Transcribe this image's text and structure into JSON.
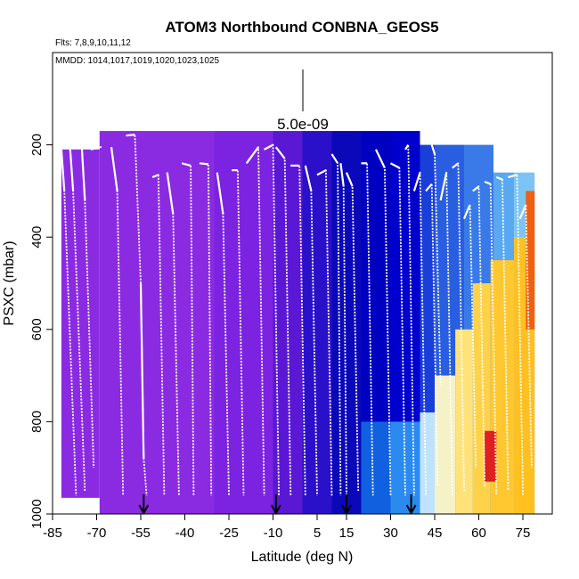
{
  "chart_data": {
    "type": "heatmap",
    "title": "ATOM3 Northbound CONBNA_GEOS5",
    "subtitle_flights": "Flts: 7,8,9,10,11,12",
    "subtitle_dates": "MMDD: 1014,1017,1019,1020,1023,1025",
    "scale_label": "5.0e-09",
    "xlabel": "Latitude (deg N)",
    "ylabel": "PSXC (mbar)",
    "xlim": [
      -85,
      85
    ],
    "ylim": [
      1000,
      0
    ],
    "x_ticks": [
      -85,
      -70,
      -55,
      -40,
      -25,
      -10,
      5,
      15,
      30,
      45,
      60,
      75
    ],
    "y_ticks": [
      200,
      400,
      600,
      800,
      1000
    ],
    "arrows_latitude": [
      -54,
      -9,
      15,
      37
    ],
    "color_regions": [
      {
        "x": [
          -82,
          -69
        ],
        "p": [
          210,
          965
        ],
        "color": "#8a2be2"
      },
      {
        "x": [
          -69,
          -30
        ],
        "p": [
          170,
          1000
        ],
        "color": "#8a2be2"
      },
      {
        "x": [
          -30,
          -10
        ],
        "p": [
          170,
          1000
        ],
        "color": "#7b23e0"
      },
      {
        "x": [
          -10,
          0
        ],
        "p": [
          170,
          1000
        ],
        "color": "#5a18d4"
      },
      {
        "x": [
          0,
          10
        ],
        "p": [
          170,
          1000
        ],
        "color": "#2a10c8"
      },
      {
        "x": [
          10,
          20
        ],
        "p": [
          170,
          1000
        ],
        "color": "#0a08b8"
      },
      {
        "x": [
          20,
          30
        ],
        "p": [
          170,
          1000
        ],
        "color": "#0000c0"
      },
      {
        "x": [
          30,
          40
        ],
        "p": [
          170,
          1000
        ],
        "color": "#0000cc"
      },
      {
        "x": [
          40,
          45
        ],
        "p": [
          200,
          1000
        ],
        "color": "#1a3fd8"
      },
      {
        "x": [
          45,
          55
        ],
        "p": [
          200,
          1000
        ],
        "color": "#2a5ee0"
      },
      {
        "x": [
          55,
          65
        ],
        "p": [
          200,
          1000
        ],
        "color": "#3a7ae8"
      },
      {
        "x": [
          65,
          72
        ],
        "p": [
          260,
          1000
        ],
        "color": "#5aa8f0"
      },
      {
        "x": [
          72,
          79
        ],
        "p": [
          260,
          1000
        ],
        "color": "#7cc4f4"
      },
      {
        "x": [
          20,
          30
        ],
        "p": [
          800,
          1000
        ],
        "color": "#1060e0"
      },
      {
        "x": [
          30,
          40
        ],
        "p": [
          800,
          1000
        ],
        "color": "#2a8af0"
      },
      {
        "x": [
          40,
          45
        ],
        "p": [
          780,
          1000
        ],
        "color": "#bfe3ff"
      },
      {
        "x": [
          45,
          52
        ],
        "p": [
          700,
          1000
        ],
        "color": "#f5f2c8"
      },
      {
        "x": [
          52,
          58
        ],
        "p": [
          600,
          1000
        ],
        "color": "#ffe27a"
      },
      {
        "x": [
          58,
          64
        ],
        "p": [
          500,
          1000
        ],
        "color": "#ffd24a"
      },
      {
        "x": [
          64,
          72
        ],
        "p": [
          450,
          1000
        ],
        "color": "#ffc830"
      },
      {
        "x": [
          72,
          79
        ],
        "p": [
          400,
          1000
        ],
        "color": "#ffc020"
      },
      {
        "x": [
          62,
          66
        ],
        "p": [
          820,
          930
        ],
        "color": "#e02020"
      },
      {
        "x": [
          76,
          79
        ],
        "p": [
          300,
          600
        ],
        "color": "#f06010"
      }
    ],
    "profiles": [
      {
        "x": [
          -82,
          -81,
          -77
        ],
        "p": [
          210,
          300,
          960
        ]
      },
      {
        "x": [
          -79,
          -78,
          -74
        ],
        "p": [
          210,
          300,
          950
        ]
      },
      {
        "x": [
          -75,
          -74,
          -71
        ],
        "p": [
          210,
          320,
          900
        ]
      },
      {
        "x": [
          -72,
          -69,
          -68
        ],
        "p": [
          210,
          205,
          205
        ]
      },
      {
        "x": [
          -65,
          -63,
          -61
        ],
        "p": [
          205,
          300,
          960
        ]
      },
      {
        "x": [
          -60,
          -57,
          -55
        ],
        "p": [
          180,
          178,
          500
        ]
      },
      {
        "x": [
          -55,
          -54,
          -53
        ],
        "p": [
          500,
          880,
          960
        ]
      },
      {
        "x": [
          -51,
          -49,
          -47
        ],
        "p": [
          270,
          265,
          960
        ]
      },
      {
        "x": [
          -46,
          -44,
          -42
        ],
        "p": [
          260,
          350,
          960
        ]
      },
      {
        "x": [
          -41,
          -38,
          -37
        ],
        "p": [
          240,
          245,
          960
        ]
      },
      {
        "x": [
          -35,
          -32,
          -31
        ],
        "p": [
          240,
          242,
          960
        ]
      },
      {
        "x": [
          -29,
          -27,
          -25
        ],
        "p": [
          260,
          350,
          960
        ]
      },
      {
        "x": [
          -24,
          -22,
          -20
        ],
        "p": [
          255,
          255,
          960
        ]
      },
      {
        "x": [
          -19,
          -15,
          -13
        ],
        "p": [
          240,
          205,
          960
        ]
      },
      {
        "x": [
          -13,
          -10,
          -8
        ],
        "p": [
          210,
          200,
          960
        ]
      },
      {
        "x": [
          -9,
          -6,
          -4
        ],
        "p": [
          205,
          230,
          960
        ]
      },
      {
        "x": [
          -4,
          -1,
          1
        ],
        "p": [
          245,
          245,
          960
        ]
      },
      {
        "x": [
          1,
          3,
          5
        ],
        "p": [
          245,
          300,
          960
        ]
      },
      {
        "x": [
          5,
          8,
          10
        ],
        "p": [
          265,
          255,
          960
        ]
      },
      {
        "x": [
          10,
          12,
          13
        ],
        "p": [
          220,
          240,
          960
        ]
      },
      {
        "x": [
          13,
          14,
          15
        ],
        "p": [
          240,
          290,
          960
        ]
      },
      {
        "x": [
          15,
          17,
          19
        ],
        "p": [
          260,
          290,
          950
        ]
      },
      {
        "x": [
          20,
          22,
          24
        ],
        "p": [
          240,
          240,
          960
        ]
      },
      {
        "x": [
          25,
          28,
          30
        ],
        "p": [
          210,
          250,
          960
        ]
      },
      {
        "x": [
          30,
          33,
          35
        ],
        "p": [
          240,
          250,
          960
        ]
      },
      {
        "x": [
          35,
          36,
          38
        ],
        "p": [
          210,
          200,
          960
        ]
      },
      {
        "x": [
          38,
          40,
          42
        ],
        "p": [
          300,
          260,
          960
        ]
      },
      {
        "x": [
          42,
          44,
          46
        ],
        "p": [
          300,
          285,
          940
        ]
      },
      {
        "x": [
          44,
          45,
          47
        ],
        "p": [
          200,
          220,
          720
        ]
      },
      {
        "x": [
          47,
          49,
          51
        ],
        "p": [
          320,
          260,
          960
        ]
      },
      {
        "x": [
          51,
          53,
          55
        ],
        "p": [
          250,
          240,
          950
        ]
      },
      {
        "x": [
          55,
          57,
          59
        ],
        "p": [
          360,
          330,
          900
        ]
      },
      {
        "x": [
          58,
          60,
          62
        ],
        "p": [
          300,
          290,
          940
        ]
      },
      {
        "x": [
          62,
          64,
          66
        ],
        "p": [
          280,
          285,
          960
        ]
      },
      {
        "x": [
          66,
          68,
          70
        ],
        "p": [
          270,
          275,
          950
        ]
      },
      {
        "x": [
          70,
          73,
          75
        ],
        "p": [
          270,
          265,
          960
        ]
      },
      {
        "x": [
          74,
          76,
          78
        ],
        "p": [
          360,
          330,
          900
        ]
      }
    ]
  }
}
